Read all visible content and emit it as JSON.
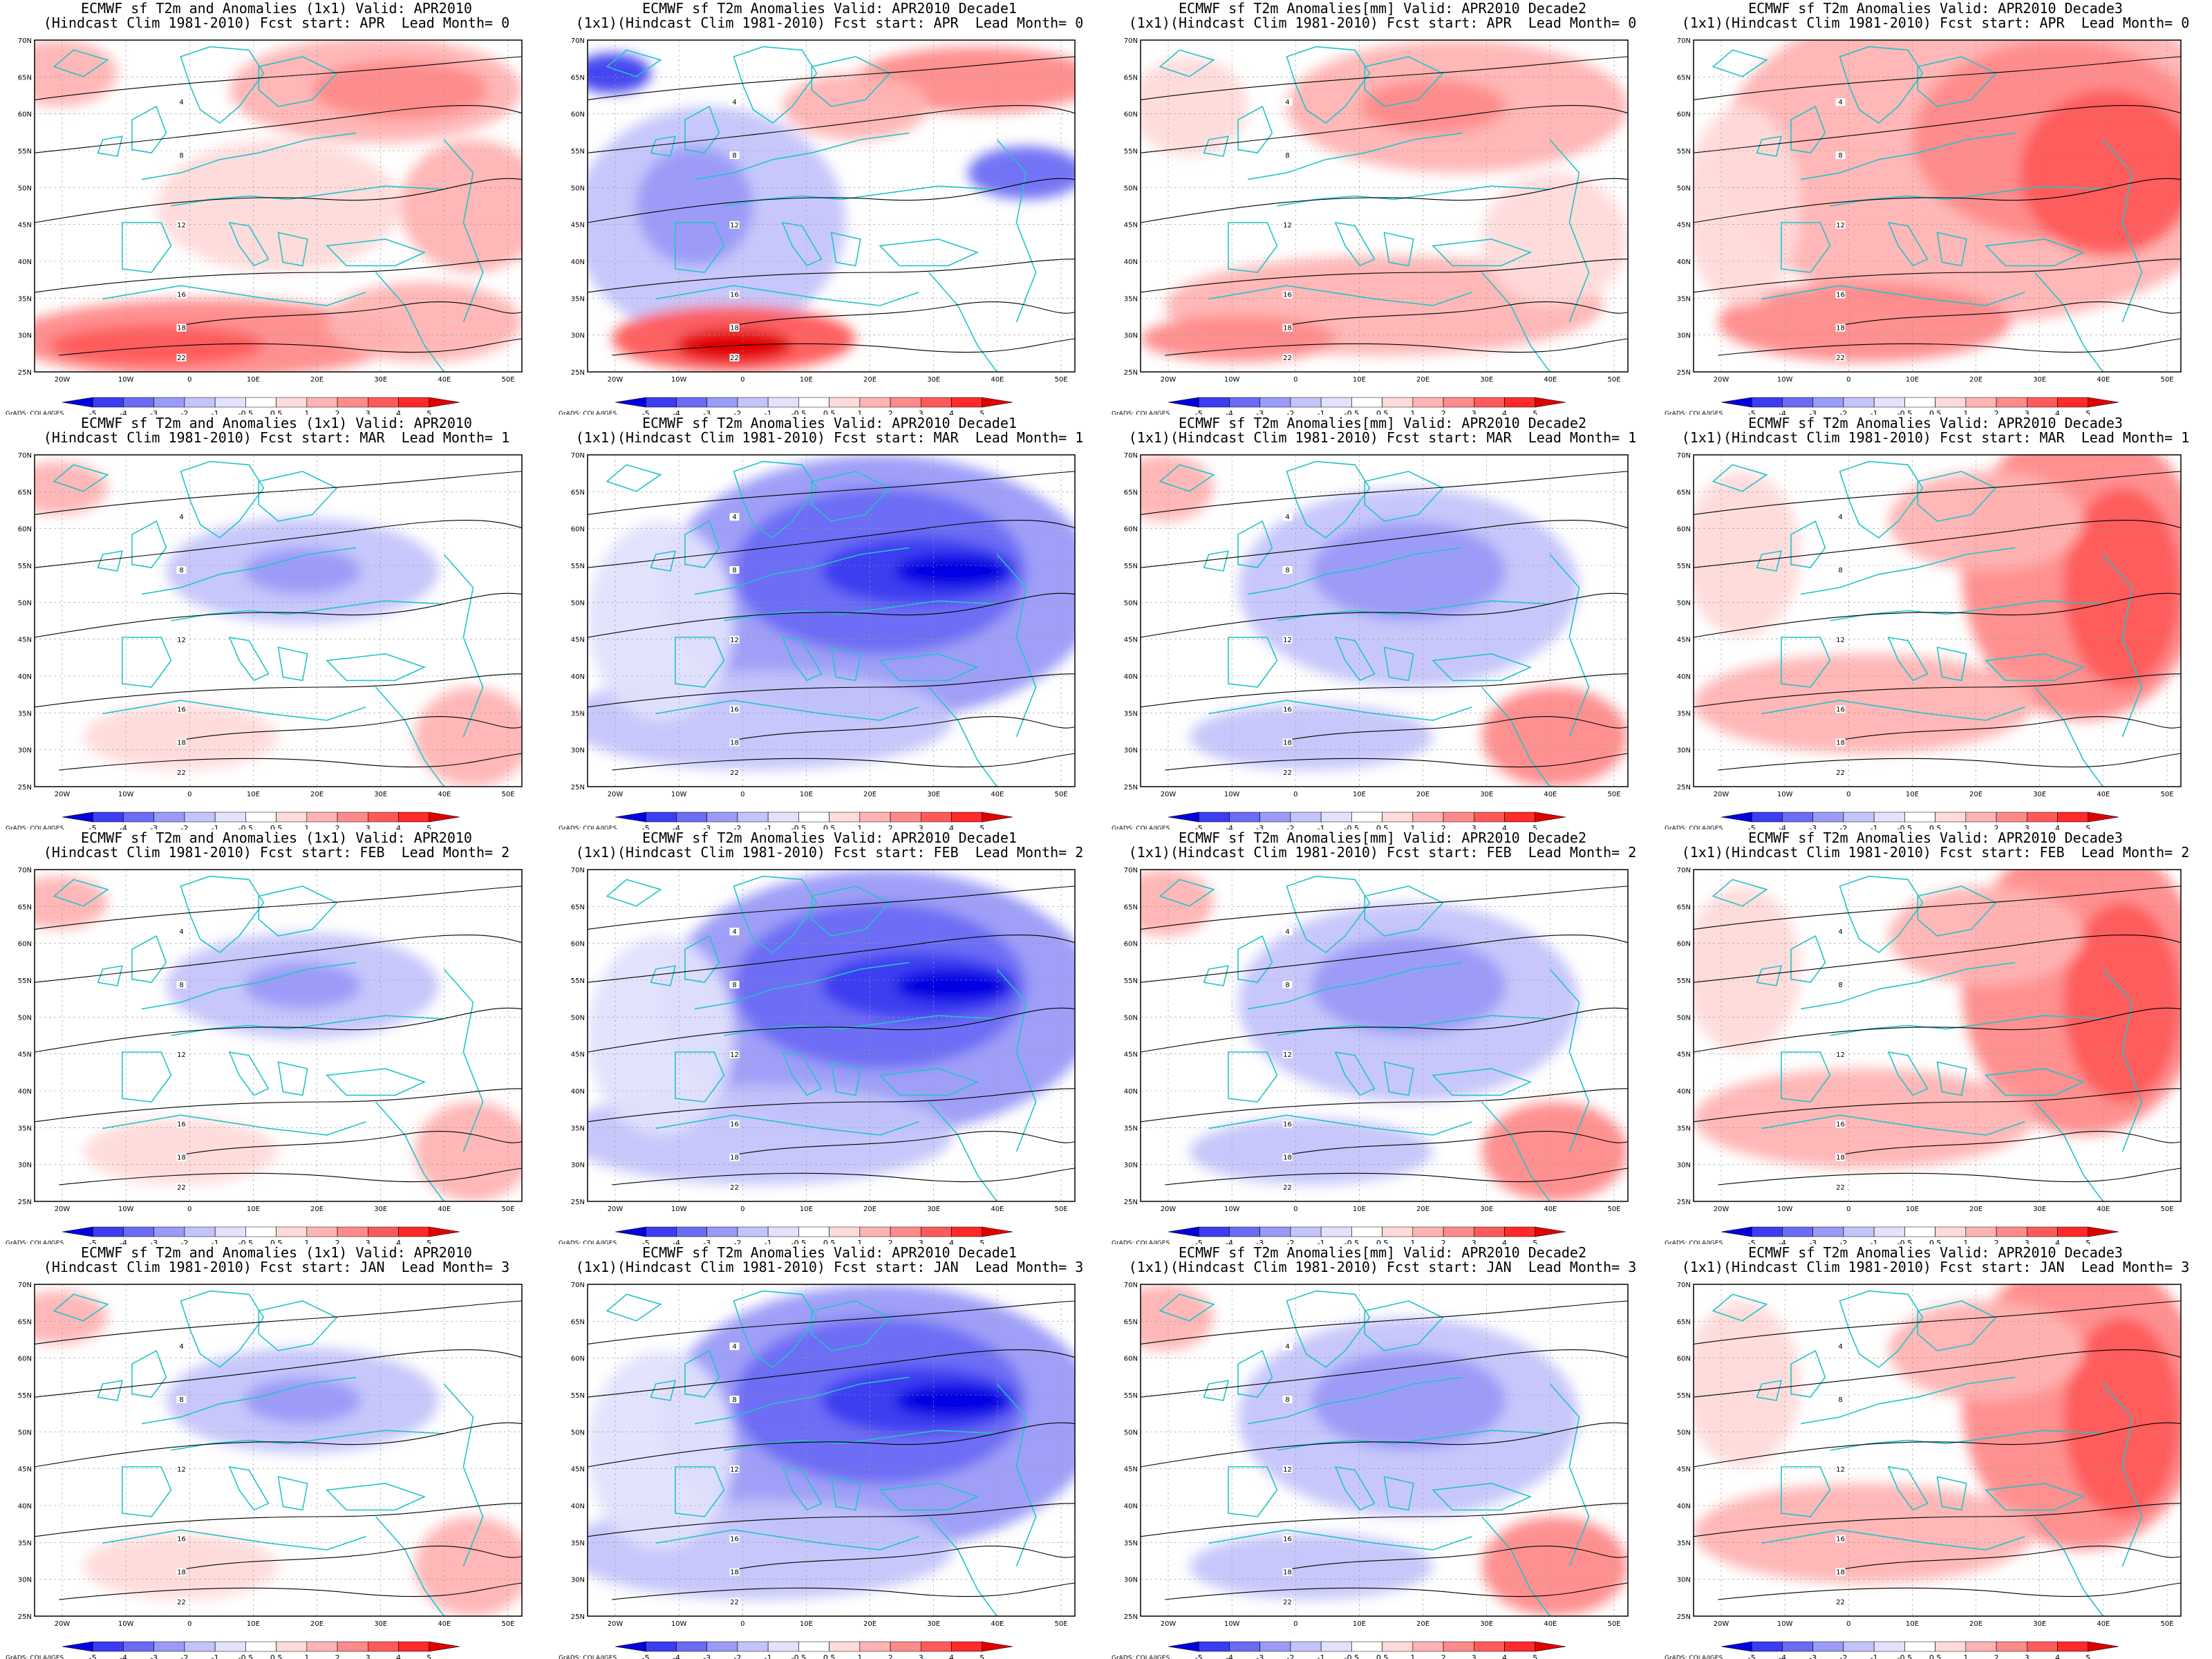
{
  "figure": {
    "panels": [
      {
        "row": 0,
        "col": 0,
        "title1": "ECMWF sf T2m and Anomalies (1x1) Valid: APR2010",
        "title2": "(Hindcast Clim 1981-2010) Fcst start: APR  Lead Month= 0",
        "pattern": "warm-mix"
      },
      {
        "row": 0,
        "col": 1,
        "title1": "ECMWF sf T2m Anomalies Valid: APR2010 Decade1",
        "title2": "(1x1)(Hindcast Clim 1981-2010) Fcst start: APR  Lead Month= 0",
        "pattern": "west-cold"
      },
      {
        "row": 0,
        "col": 2,
        "title1": "ECMWF sf T2m Anomalies[mm] Valid: APR2010 Decade2",
        "title2": "(1x1)(Hindcast Clim 1981-2010) Fcst start: APR  Lead Month= 0",
        "pattern": "warm-light"
      },
      {
        "row": 0,
        "col": 3,
        "title1": "ECMWF sf T2m Anomalies Valid: APR2010 Decade3",
        "title2": "(1x1)(Hindcast Clim 1981-2010) Fcst start: APR  Lead Month= 0",
        "pattern": "warm-strong"
      },
      {
        "row": 1,
        "col": 0,
        "title1": "ECMWF sf T2m and Anomalies (1x1) Valid: APR2010",
        "title2": "(Hindcast Clim 1981-2010) Fcst start: MAR  Lead Month= 1",
        "pattern": "cold-mild"
      },
      {
        "row": 1,
        "col": 1,
        "title1": "ECMWF sf T2m Anomalies Valid: APR2010 Decade1",
        "title2": "(1x1)(Hindcast Clim 1981-2010) Fcst start: MAR  Lead Month= 1",
        "pattern": "cold-strong"
      },
      {
        "row": 1,
        "col": 2,
        "title1": "ECMWF sf T2m Anomalies[mm] Valid: APR2010 Decade2",
        "title2": "(1x1)(Hindcast Clim 1981-2010) Fcst start: MAR  Lead Month= 1",
        "pattern": "cold-mid"
      },
      {
        "row": 1,
        "col": 3,
        "title1": "ECMWF sf T2m Anomalies Valid: APR2010 Decade3",
        "title2": "(1x1)(Hindcast Clim 1981-2010) Fcst start: MAR  Lead Month= 1",
        "pattern": "warm-east"
      },
      {
        "row": 2,
        "col": 0,
        "title1": "ECMWF sf T2m and Anomalies (1x1) Valid: APR2010",
        "title2": "(Hindcast Clim 1981-2010) Fcst start: FEB  Lead Month= 2",
        "pattern": "cold-mild"
      },
      {
        "row": 2,
        "col": 1,
        "title1": "ECMWF sf T2m Anomalies Valid: APR2010 Decade1",
        "title2": "(1x1)(Hindcast Clim 1981-2010) Fcst start: FEB  Lead Month= 2",
        "pattern": "cold-strong"
      },
      {
        "row": 2,
        "col": 2,
        "title1": "ECMWF sf T2m Anomalies[mm] Valid: APR2010 Decade2",
        "title2": "(1x1)(Hindcast Clim 1981-2010) Fcst start: FEB  Lead Month= 2",
        "pattern": "cold-mid"
      },
      {
        "row": 2,
        "col": 3,
        "title1": "ECMWF sf T2m Anomalies Valid: APR2010 Decade3",
        "title2": "(1x1)(Hindcast Clim 1981-2010) Fcst start: FEB  Lead Month= 2",
        "pattern": "warm-east"
      },
      {
        "row": 3,
        "col": 0,
        "title1": "ECMWF sf T2m and Anomalies (1x1) Valid: APR2010",
        "title2": "(Hindcast Clim 1981-2010) Fcst start: JAN  Lead Month= 3",
        "pattern": "cold-mild"
      },
      {
        "row": 3,
        "col": 1,
        "title1": "ECMWF sf T2m Anomalies Valid: APR2010 Decade1",
        "title2": "(1x1)(Hindcast Clim 1981-2010) Fcst start: JAN  Lead Month= 3",
        "pattern": "cold-strong"
      },
      {
        "row": 3,
        "col": 2,
        "title1": "ECMWF sf T2m Anomalies[mm] Valid: APR2010 Decade2",
        "title2": "(1x1)(Hindcast Clim 1981-2010) Fcst start: JAN  Lead Month= 3",
        "pattern": "cold-mid"
      },
      {
        "row": 3,
        "col": 3,
        "title1": "ECMWF sf T2m Anomalies Valid: APR2010 Decade3",
        "title2": "(1x1)(Hindcast Clim 1981-2010) Fcst start: JAN  Lead Month= 3",
        "pattern": "warm-east"
      }
    ],
    "lat_labels": [
      "70N",
      "65N",
      "60N",
      "55N",
      "50N",
      "45N",
      "40N",
      "35N",
      "30N",
      "25N"
    ],
    "lon_labels": [
      "20W",
      "10W",
      "0",
      "10E",
      "20E",
      "30E",
      "40E",
      "50E"
    ],
    "colorbar_ticks": [
      "-5",
      "-4",
      "-3",
      "-2",
      "-1",
      "-0.5",
      "0.5",
      "1",
      "2",
      "3",
      "4",
      "5"
    ],
    "colorbar_colors": [
      "#0000e0",
      "#3c3cf0",
      "#6b6bf5",
      "#9a9af8",
      "#c4c4fb",
      "#e2e2fd",
      "#ffffff",
      "#ffdada",
      "#ffb3b3",
      "#ff8a8a",
      "#ff5a5a",
      "#ff2a2a",
      "#e00000"
    ],
    "credit": "GrADS: COLA/IGES",
    "contour_labels": [
      "4",
      "8",
      "12",
      "16",
      "18",
      "22"
    ],
    "colors": {
      "coast": "#22c4c8",
      "contour": "#000000",
      "warm": "#ff6666",
      "cold": "#5555ee"
    }
  }
}
